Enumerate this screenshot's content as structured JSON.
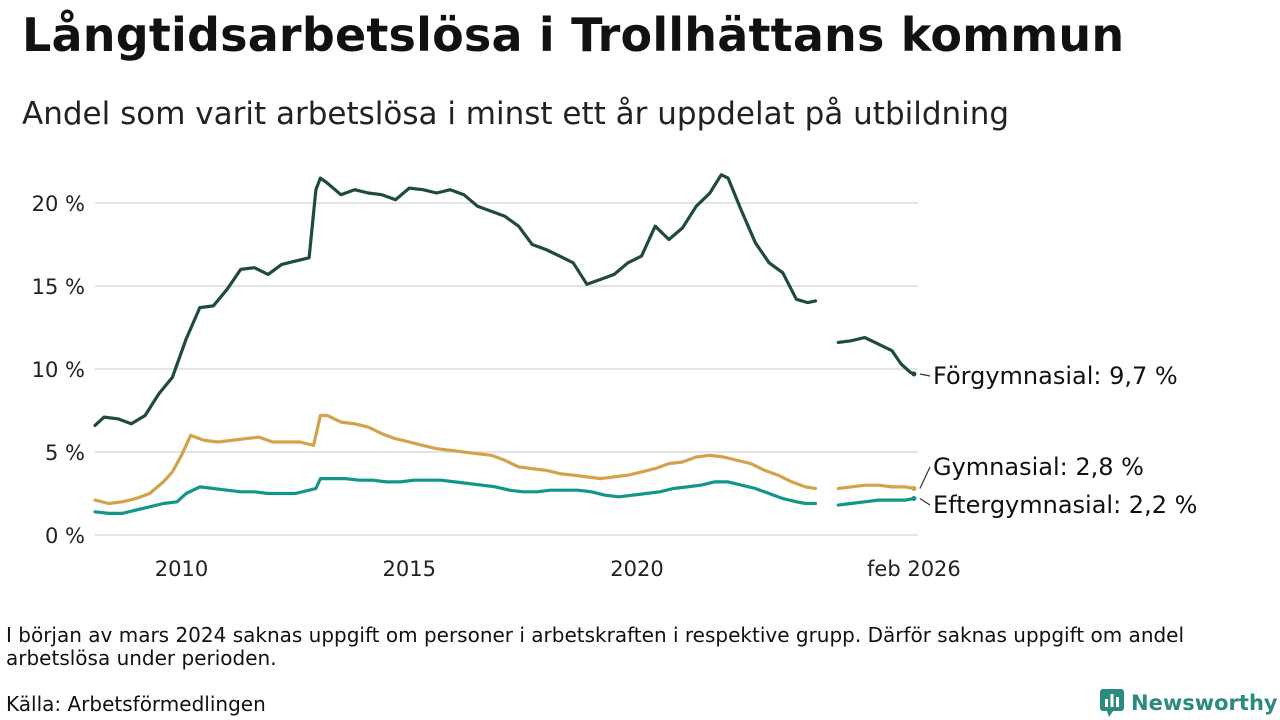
{
  "title": "Långtidsarbetslösa i Trollhättans kommun",
  "subtitle": "Andel som varit arbetslösa i minst ett år uppdelat på utbildning",
  "note": "I början av mars 2024 saknas uppgift om personer i arbetskraften i respektive grupp. Därför saknas uppgift om andel arbetslösa under perioden.",
  "source": "Källa: Arbetsförmedlingen",
  "brand": {
    "name": "Newsworthy",
    "icon": "bar-chart-speech-icon"
  },
  "colors": {
    "forgymnasial": "#1f4a44",
    "gymnasial": "#d4a24c",
    "eftergymnasial": "#13968a",
    "grid": "#dcdcdc",
    "brand": "#2d8a7e"
  },
  "chart_data": {
    "type": "line",
    "x_unit": "decimal year",
    "xlim": [
      2008.1,
      2026.17
    ],
    "ylim": [
      0,
      22
    ],
    "y_ticks": [
      0,
      5,
      10,
      15,
      20
    ],
    "y_tick_labels": [
      "0 %",
      "5 %",
      "10 %",
      "15 %",
      "20 %"
    ],
    "x_ticks": [
      2010,
      2015,
      2020,
      2026.08
    ],
    "x_tick_labels": [
      "2010",
      "2015",
      "2020",
      "feb 2026"
    ],
    "gap": [
      2023.92,
      2024.42
    ],
    "series": [
      {
        "key": "forgymnasial",
        "name": "Förgymnasial",
        "label": "Förgymnasial: 9,7 %",
        "last_value": 9.7,
        "x": [
          2008.1,
          2008.3,
          2008.6,
          2008.9,
          2009.2,
          2009.5,
          2009.8,
          2010.1,
          2010.4,
          2010.7,
          2011.0,
          2011.3,
          2011.6,
          2011.9,
          2012.2,
          2012.5,
          2012.8,
          2012.95,
          2013.05,
          2013.2,
          2013.5,
          2013.8,
          2014.1,
          2014.4,
          2014.7,
          2015.0,
          2015.3,
          2015.6,
          2015.9,
          2016.2,
          2016.5,
          2016.8,
          2017.1,
          2017.4,
          2017.7,
          2018.0,
          2018.3,
          2018.6,
          2018.9,
          2019.2,
          2019.5,
          2019.8,
          2020.1,
          2020.4,
          2020.7,
          2021.0,
          2021.3,
          2021.6,
          2021.85,
          2022.0,
          2022.3,
          2022.6,
          2022.9,
          2023.2,
          2023.5,
          2023.75,
          2023.92,
          2024.42,
          2024.7,
          2025.0,
          2025.3,
          2025.6,
          2025.8,
          2026.0,
          2026.08
        ],
        "y": [
          6.6,
          7.1,
          7.0,
          6.7,
          7.2,
          8.5,
          9.5,
          11.8,
          13.7,
          13.8,
          14.8,
          16.0,
          16.1,
          15.7,
          16.3,
          16.5,
          16.7,
          20.8,
          21.5,
          21.2,
          20.5,
          20.8,
          20.6,
          20.5,
          20.2,
          20.9,
          20.8,
          20.6,
          20.8,
          20.5,
          19.8,
          19.5,
          19.2,
          18.6,
          17.5,
          17.2,
          16.8,
          16.4,
          15.1,
          15.4,
          15.7,
          16.4,
          16.8,
          18.6,
          17.8,
          18.5,
          19.8,
          20.6,
          21.7,
          21.5,
          19.5,
          17.6,
          16.4,
          15.8,
          14.2,
          14.0,
          14.1,
          11.6,
          11.7,
          11.9,
          11.5,
          11.1,
          10.3,
          9.8,
          9.7
        ]
      },
      {
        "key": "gymnasial",
        "name": "Gymnasial",
        "label": "Gymnasial: 2,8 %",
        "last_value": 2.8,
        "x": [
          2008.1,
          2008.4,
          2008.7,
          2009.0,
          2009.3,
          2009.6,
          2009.8,
          2010.0,
          2010.2,
          2010.5,
          2010.8,
          2011.1,
          2011.4,
          2011.7,
          2012.0,
          2012.3,
          2012.6,
          2012.9,
          2013.05,
          2013.2,
          2013.5,
          2013.8,
          2014.1,
          2014.4,
          2014.7,
          2015.0,
          2015.3,
          2015.6,
          2015.9,
          2016.2,
          2016.5,
          2016.8,
          2017.1,
          2017.4,
          2017.7,
          2018.0,
          2018.3,
          2018.6,
          2018.9,
          2019.2,
          2019.5,
          2019.8,
          2020.1,
          2020.4,
          2020.7,
          2021.0,
          2021.3,
          2021.6,
          2021.9,
          2022.2,
          2022.5,
          2022.8,
          2023.1,
          2023.4,
          2023.7,
          2023.92,
          2024.42,
          2024.7,
          2025.0,
          2025.3,
          2025.6,
          2025.9,
          2026.08
        ],
        "y": [
          2.1,
          1.9,
          2.0,
          2.2,
          2.5,
          3.2,
          3.8,
          4.8,
          6.0,
          5.7,
          5.6,
          5.7,
          5.8,
          5.9,
          5.6,
          5.6,
          5.6,
          5.4,
          7.2,
          7.2,
          6.8,
          6.7,
          6.5,
          6.1,
          5.8,
          5.6,
          5.4,
          5.2,
          5.1,
          5.0,
          4.9,
          4.8,
          4.5,
          4.1,
          4.0,
          3.9,
          3.7,
          3.6,
          3.5,
          3.4,
          3.5,
          3.6,
          3.8,
          4.0,
          4.3,
          4.4,
          4.7,
          4.8,
          4.7,
          4.5,
          4.3,
          3.9,
          3.6,
          3.2,
          2.9,
          2.8,
          2.8,
          2.9,
          3.0,
          3.0,
          2.9,
          2.9,
          2.8
        ]
      },
      {
        "key": "eftergymnasial",
        "name": "Eftergymnasial",
        "label": "Eftergymnasial: 2,2 %",
        "last_value": 2.2,
        "x": [
          2008.1,
          2008.4,
          2008.7,
          2009.0,
          2009.3,
          2009.6,
          2009.9,
          2010.1,
          2010.4,
          2010.7,
          2011.0,
          2011.3,
          2011.6,
          2011.9,
          2012.2,
          2012.5,
          2012.8,
          2012.95,
          2013.05,
          2013.3,
          2013.6,
          2013.9,
          2014.2,
          2014.5,
          2014.8,
          2015.1,
          2015.4,
          2015.7,
          2016.0,
          2016.3,
          2016.6,
          2016.9,
          2017.2,
          2017.5,
          2017.8,
          2018.1,
          2018.4,
          2018.7,
          2019.0,
          2019.3,
          2019.6,
          2019.9,
          2020.2,
          2020.5,
          2020.8,
          2021.1,
          2021.4,
          2021.7,
          2022.0,
          2022.3,
          2022.6,
          2022.9,
          2023.2,
          2023.5,
          2023.7,
          2023.92,
          2024.42,
          2024.7,
          2025.0,
          2025.3,
          2025.6,
          2025.9,
          2026.08
        ],
        "y": [
          1.4,
          1.3,
          1.3,
          1.5,
          1.7,
          1.9,
          2.0,
          2.5,
          2.9,
          2.8,
          2.7,
          2.6,
          2.6,
          2.5,
          2.5,
          2.5,
          2.7,
          2.8,
          3.4,
          3.4,
          3.4,
          3.3,
          3.3,
          3.2,
          3.2,
          3.3,
          3.3,
          3.3,
          3.2,
          3.1,
          3.0,
          2.9,
          2.7,
          2.6,
          2.6,
          2.7,
          2.7,
          2.7,
          2.6,
          2.4,
          2.3,
          2.4,
          2.5,
          2.6,
          2.8,
          2.9,
          3.0,
          3.2,
          3.2,
          3.0,
          2.8,
          2.5,
          2.2,
          2.0,
          1.9,
          1.9,
          1.8,
          1.9,
          2.0,
          2.1,
          2.1,
          2.1,
          2.2
        ]
      }
    ]
  }
}
